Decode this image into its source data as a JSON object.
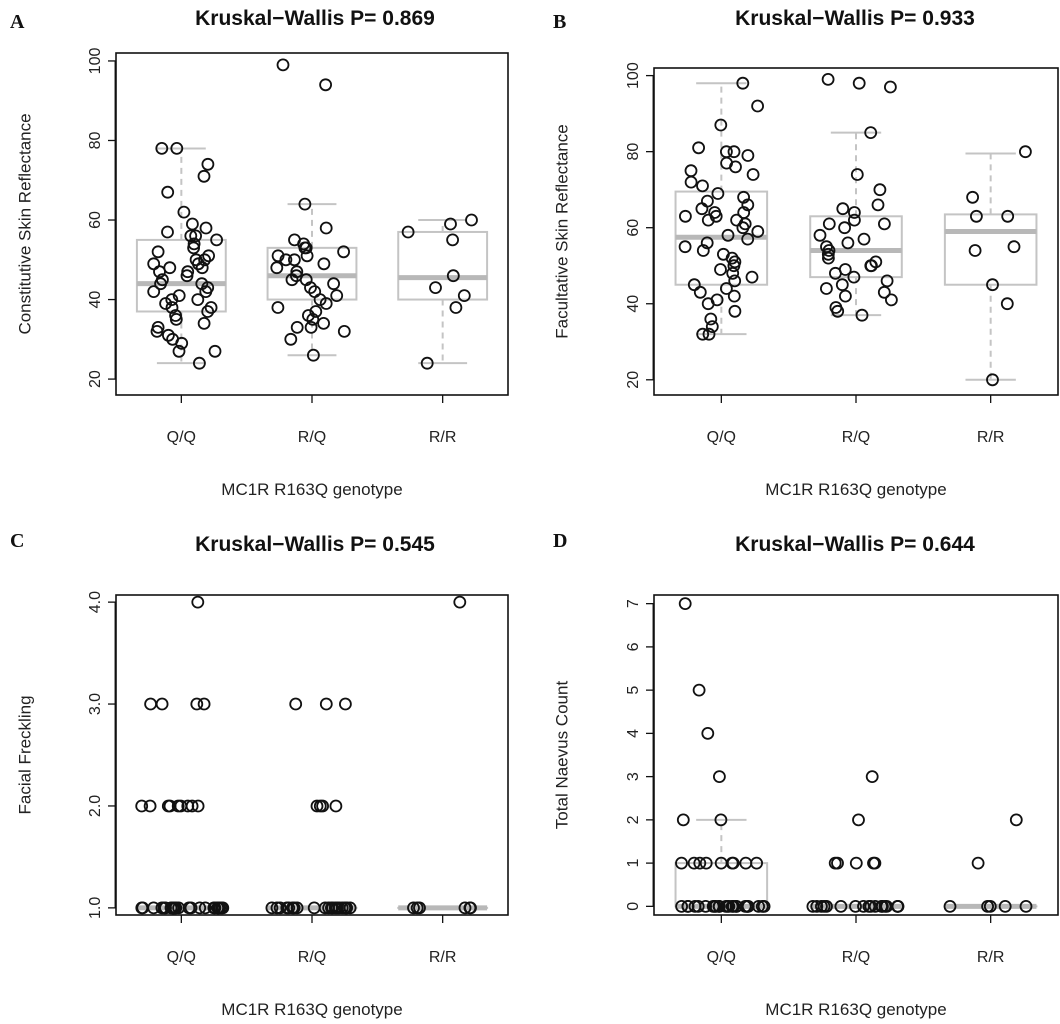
{
  "figure": {
    "xlabel": "MC1R R163Q genotype",
    "colors": {
      "box": "#c4c4c4",
      "median": "#b8b8b8",
      "whisker": "#c4c4c4",
      "point": "#111111",
      "frame": "#111111"
    }
  },
  "chart_data": [
    {
      "panel": "A",
      "type": "box",
      "title": "Kruskal−Wallis P= 0.869",
      "xlabel": "MC1R R163Q genotype",
      "ylabel": "Constitutive Skin Reflectance",
      "categories": [
        "Q/Q",
        "R/Q",
        "R/R"
      ],
      "ylim": [
        16,
        102
      ],
      "yticks": [
        20,
        40,
        60,
        80,
        100
      ],
      "ytick_labels": [
        "20",
        "40",
        "60",
        "80",
        "100"
      ],
      "grid": false,
      "boxes": [
        {
          "whisker_low": 24,
          "q1": 37,
          "median": 44,
          "q3": 55,
          "whisker_high": 78
        },
        {
          "whisker_low": 26,
          "q1": 40,
          "median": 46,
          "q3": 53,
          "whisker_high": 64
        },
        {
          "whisker_low": 24,
          "q1": 40,
          "median": 45.5,
          "q3": 57,
          "whisker_high": 60
        }
      ],
      "points": [
        [
          59,
          57,
          56,
          55,
          54,
          53,
          52,
          51,
          50,
          50,
          49,
          48,
          48,
          47,
          46,
          45,
          44,
          44,
          43,
          42,
          42,
          41,
          40,
          40,
          39,
          38,
          38,
          37,
          36,
          35,
          34,
          33,
          32,
          31,
          30,
          29,
          27,
          27,
          24,
          78,
          78,
          74,
          71,
          67,
          62,
          58,
          56,
          49,
          47
        ],
        [
          99,
          94,
          64,
          58,
          55,
          54,
          53,
          53,
          52,
          51,
          51,
          50,
          50,
          49,
          48,
          47,
          46,
          45,
          45,
          44,
          43,
          42,
          41,
          40,
          39,
          38,
          37,
          36,
          35,
          34,
          33,
          33,
          32,
          30,
          26
        ],
        [
          60,
          59,
          57,
          55,
          46,
          43,
          41,
          38,
          24
        ]
      ]
    },
    {
      "panel": "B",
      "type": "box",
      "title": "Kruskal−Wallis P= 0.933",
      "xlabel": "MC1R R163Q genotype",
      "ylabel": "Facultative Skin Reflectance",
      "categories": [
        "Q/Q",
        "R/Q",
        "R/R"
      ],
      "ylim": [
        16,
        102
      ],
      "yticks": [
        20,
        40,
        60,
        80,
        100
      ],
      "ytick_labels": [
        "20",
        "40",
        "60",
        "80",
        "100"
      ],
      "grid": false,
      "boxes": [
        {
          "whisker_low": 32,
          "q1": 45,
          "median": 57.5,
          "q3": 69.5,
          "whisker_high": 98
        },
        {
          "whisker_low": 37,
          "q1": 47,
          "median": 54,
          "q3": 63,
          "whisker_high": 85
        },
        {
          "whisker_low": 20,
          "q1": 45,
          "median": 59,
          "q3": 63.5,
          "whisker_high": 79.5
        }
      ],
      "points": [
        [
          98,
          92,
          87,
          81,
          80,
          80,
          79,
          77,
          76,
          75,
          74,
          72,
          71,
          69,
          68,
          67,
          66,
          65,
          64,
          64,
          63,
          63,
          62,
          62,
          61,
          60,
          59,
          58,
          57,
          56,
          55,
          54,
          53,
          52,
          51,
          50,
          49,
          48,
          47,
          46,
          45,
          44,
          43,
          42,
          41,
          40,
          38,
          36,
          34,
          32,
          32
        ],
        [
          99,
          98,
          97,
          85,
          74,
          70,
          66,
          65,
          64,
          62,
          61,
          61,
          60,
          58,
          57,
          56,
          55,
          54,
          53,
          52,
          51,
          50,
          50,
          49,
          48,
          47,
          46,
          45,
          44,
          43,
          42,
          41,
          39,
          38,
          37
        ],
        [
          80,
          68,
          63,
          63,
          55,
          54,
          45,
          40,
          20
        ]
      ]
    },
    {
      "panel": "C",
      "type": "box",
      "title": "Kruskal−Wallis P= 0.545",
      "xlabel": "MC1R R163Q genotype",
      "ylabel": "Facial Freckling",
      "categories": [
        "Q/Q",
        "R/Q",
        "R/R"
      ],
      "ylim": [
        0.93,
        4.07
      ],
      "yticks": [
        1,
        2,
        3,
        4
      ],
      "ytick_labels": [
        "1.0",
        "2.0",
        "3.0",
        "4.0"
      ],
      "grid": false,
      "boxes": [
        {
          "whisker_low": 1,
          "q1": 1,
          "median": 1,
          "q3": 1,
          "whisker_high": 1
        },
        {
          "whisker_low": 1,
          "q1": 1,
          "median": 1,
          "q3": 1,
          "whisker_high": 1
        },
        {
          "whisker_low": 1,
          "q1": 1,
          "median": 1,
          "q3": 1,
          "whisker_high": 1
        }
      ],
      "points": [
        [
          4,
          3,
          3,
          3,
          3,
          2,
          2,
          2,
          2,
          2,
          2,
          2,
          2,
          2,
          1,
          1,
          1,
          1,
          1,
          1,
          1,
          1,
          1,
          1,
          1,
          1,
          1,
          1,
          1,
          1,
          1,
          1,
          1,
          1,
          1,
          1,
          1,
          1,
          1,
          1
        ],
        [
          3,
          3,
          3,
          2,
          2,
          2,
          2,
          1,
          1,
          1,
          1,
          1,
          1,
          1,
          1,
          1,
          1,
          1,
          1,
          1,
          1,
          1,
          1,
          1,
          1,
          1,
          1,
          1
        ],
        [
          4,
          1,
          1,
          1,
          1,
          1,
          1
        ]
      ]
    },
    {
      "panel": "D",
      "type": "box",
      "title": "Kruskal−Wallis P= 0.644",
      "xlabel": "MC1R R163Q genotype",
      "ylabel": "Total Naevus Count",
      "categories": [
        "Q/Q",
        "R/Q",
        "R/R"
      ],
      "ylim": [
        -0.2,
        7.2
      ],
      "yticks": [
        0,
        1,
        2,
        3,
        4,
        5,
        6,
        7
      ],
      "ytick_labels": [
        "0",
        "1",
        "2",
        "3",
        "4",
        "5",
        "6",
        "7"
      ],
      "grid": false,
      "boxes": [
        {
          "whisker_low": 0,
          "q1": 0,
          "median": 0,
          "q3": 1,
          "whisker_high": 2
        },
        {
          "whisker_low": 0,
          "q1": 0,
          "median": 0,
          "q3": 0,
          "whisker_high": 0
        },
        {
          "whisker_low": 0,
          "q1": 0,
          "median": 0,
          "q3": 0,
          "whisker_high": 0
        }
      ],
      "points": [
        [
          7,
          5,
          4,
          3,
          2,
          2,
          1,
          1,
          1,
          1,
          1,
          1,
          1,
          1,
          1,
          0,
          0,
          0,
          0,
          0,
          0,
          0,
          0,
          0,
          0,
          0,
          0,
          0,
          0,
          0,
          0,
          0,
          0,
          0,
          0,
          0,
          0,
          0,
          0,
          0
        ],
        [
          3,
          2,
          1,
          1,
          1,
          1,
          1,
          0,
          0,
          0,
          0,
          0,
          0,
          0,
          0,
          0,
          0,
          0,
          0,
          0,
          0,
          0,
          0,
          0,
          0
        ],
        [
          2,
          1,
          0,
          0,
          0,
          0,
          0
        ]
      ]
    }
  ]
}
